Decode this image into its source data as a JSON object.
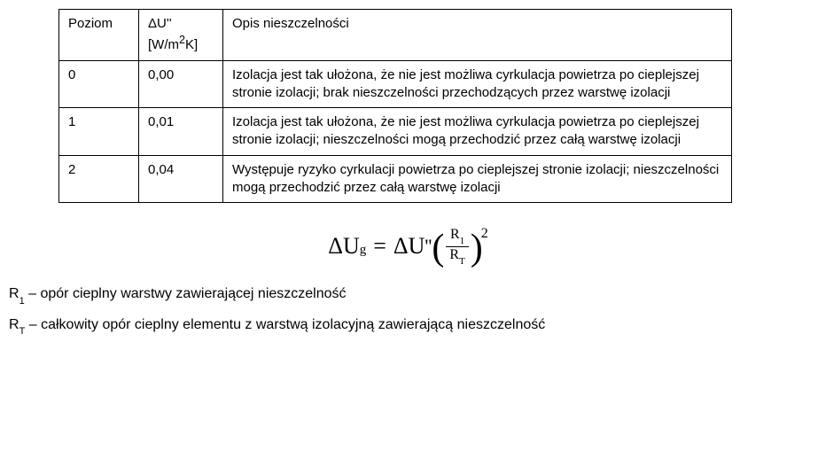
{
  "table": {
    "columns": [
      {
        "label": "Poziom",
        "key": "poziom"
      },
      {
        "label": "ΔU''\n[W/m²K]",
        "key": "delta"
      },
      {
        "label": "Opis nieszczelności",
        "key": "opis"
      }
    ],
    "rows": [
      {
        "poziom": "0",
        "delta": "0,00",
        "opis": "Izolacja jest tak ułożona, że nie jest możliwa cyrkulacja powietrza po cieplejszej stronie izolacji; brak nieszczelności przechodzących przez warstwę izolacji"
      },
      {
        "poziom": "1",
        "delta": "0,01",
        "opis": "Izolacja jest tak ułożona, że nie jest możliwa cyrkulacja powietrza po cieplejszej stronie izolacji; nieszczelności mogą przechodzić przez całą warstwę izolacji"
      },
      {
        "poziom": "2",
        "delta": "0,04",
        "opis": "Występuje ryzyko cyrkulacji powietrza po cieplejszej stronie izolacji; nieszczelności mogą przechodzić przez całą warstwę izolacji"
      }
    ],
    "border_color": "#000000",
    "background_color": "#ffffff",
    "font_size": 15
  },
  "formula": {
    "delta": "Δ",
    "U": "U",
    "sub_g": "g",
    "equals": "=",
    "dprime": "''",
    "paren_left": "(",
    "paren_right": ")",
    "R": "R",
    "sub_1": "1",
    "sub_T": "T",
    "exp": "2",
    "font_family": "Times New Roman",
    "font_size": 26
  },
  "legend": {
    "items": [
      {
        "sym": "R",
        "sub": "1",
        "dash": " – ",
        "text": "opór cieplny warstwy zawierającej nieszczelność"
      },
      {
        "sym": "R",
        "sub": "T",
        "dash": " – ",
        "text": "całkowity opór cieplny elementu z warstwą izolacyjną zawierającą nieszczelność"
      }
    ],
    "font_size": 16
  },
  "text": {
    "header_col1_l1": "Poziom",
    "header_col2_l1": "ΔU''",
    "header_col2_l2": "[W/m",
    "header_col2_sup": "2",
    "header_col2_l3": "K]",
    "header_col3_l1": "Opis nieszczelności"
  }
}
